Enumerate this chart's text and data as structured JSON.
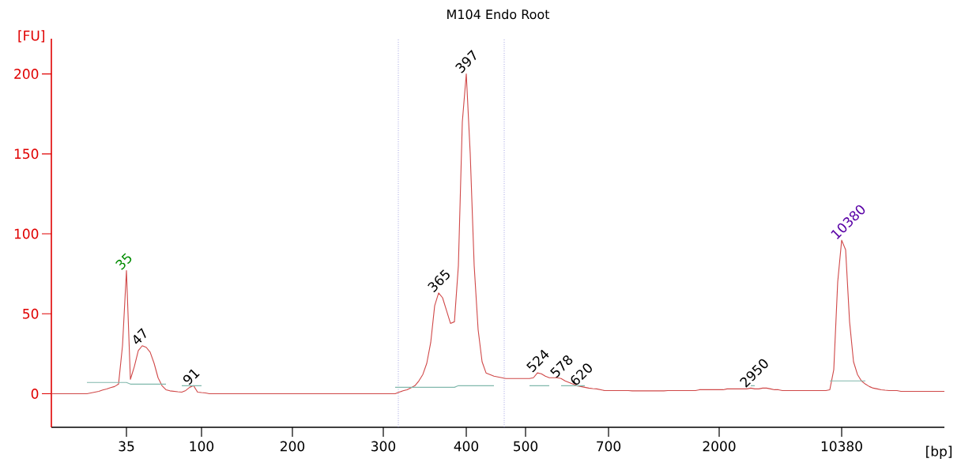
{
  "chart_data": {
    "type": "line",
    "title": "M104 Endo Root",
    "xlabel": "[bp]",
    "ylabel": "[FU]",
    "ylim": [
      -21,
      222
    ],
    "yticks": [
      0,
      50,
      100,
      150,
      200
    ],
    "categories": [
      null,
      null,
      null,
      null,
      null,
      null,
      null,
      null,
      null,
      null,
      null,
      null,
      null,
      null,
      null,
      null,
      null,
      null,
      null,
      "35",
      null,
      null,
      null,
      null,
      null,
      null,
      null,
      null,
      null,
      null,
      null,
      null,
      null,
      null,
      null,
      null,
      null,
      null,
      "100",
      null,
      null,
      null,
      null,
      null,
      null,
      null,
      null,
      null,
      null,
      null,
      null,
      null,
      null,
      null,
      null,
      null,
      null,
      null,
      null,
      null,
      null,
      "200",
      null,
      null,
      null,
      null,
      null,
      null,
      null,
      null,
      null,
      null,
      null,
      null,
      null,
      null,
      null,
      null,
      null,
      null,
      null,
      null,
      null,
      null,
      "300",
      null,
      null,
      null,
      null,
      null,
      null,
      null,
      null,
      null,
      null,
      null,
      null,
      null,
      null,
      null,
      null,
      null,
      null,
      null,
      null,
      "400",
      null,
      null,
      null,
      null,
      null,
      null,
      null,
      null,
      null,
      null,
      null,
      null,
      null,
      null,
      "500",
      null,
      null,
      null,
      null,
      null,
      null,
      null,
      null,
      null,
      null,
      null,
      null,
      null,
      null,
      null,
      null,
      null,
      null,
      null,
      null,
      "700",
      null,
      null,
      null,
      null,
      null,
      null,
      null,
      null,
      null,
      null,
      null,
      null,
      null,
      null,
      null,
      null,
      null,
      null,
      null,
      null,
      null,
      null,
      null,
      null,
      null,
      null,
      null,
      "2000",
      null,
      null,
      null,
      null,
      null,
      null,
      null,
      null,
      null,
      null,
      null,
      null,
      null,
      null,
      null,
      null,
      null,
      null,
      null,
      null,
      null,
      null,
      null,
      null,
      null,
      null,
      null,
      null,
      null,
      null,
      "10380",
      null,
      null,
      null,
      null,
      null,
      null,
      null,
      null,
      null,
      null,
      null,
      null,
      null,
      null,
      null,
      null,
      null,
      null,
      null,
      null,
      null,
      null,
      null,
      null,
      null,
      null
    ],
    "annotations": [
      "35",
      "47",
      "91",
      "365",
      "397",
      "524",
      "578",
      "620",
      "2950",
      "10380"
    ],
    "series": [
      {
        "color": "#d04848",
        "values": [
          0,
          0,
          0,
          0,
          0,
          0,
          0,
          0,
          0,
          0,
          0.5,
          1,
          1.5,
          2.3,
          3,
          3.8,
          4.5,
          6,
          30,
          77,
          9,
          17,
          27,
          30,
          29,
          26,
          19,
          10,
          5,
          2.5,
          1.8,
          1.5,
          1.2,
          1,
          2,
          4,
          5,
          1,
          0.7,
          0.5,
          0,
          0,
          0,
          0,
          0,
          0,
          0,
          0,
          0,
          0,
          0,
          0,
          0,
          0,
          0,
          0,
          0,
          0,
          0,
          0,
          0,
          0,
          0,
          0,
          0,
          0,
          0,
          0,
          0,
          0,
          0,
          0,
          0,
          0,
          0,
          0,
          0,
          0,
          0,
          0,
          0,
          0,
          0,
          0,
          0,
          0,
          0,
          0,
          1,
          1.8,
          2.5,
          3.7,
          5,
          8,
          12,
          19,
          32,
          55,
          63,
          60,
          52,
          44,
          45,
          80,
          170,
          200,
          150,
          80,
          40,
          20,
          13,
          12,
          11,
          10.5,
          10,
          9.5,
          9.5,
          9.5,
          9.5,
          9.5,
          9.5,
          9.5,
          10,
          13,
          12.5,
          11,
          10,
          10,
          10,
          9.5,
          8,
          7,
          6,
          5,
          4.5,
          4,
          3.5,
          3.2,
          3,
          2.5,
          2,
          2,
          2,
          2,
          2,
          2,
          2,
          1.8,
          1.8,
          1.8,
          1.8,
          1.8,
          1.8,
          1.8,
          1.8,
          1.8,
          2,
          2,
          2,
          2,
          2,
          2,
          2,
          2,
          2.5,
          2.5,
          2.5,
          2.5,
          2.5,
          2.5,
          2.5,
          3,
          3,
          3,
          3,
          3,
          3,
          3.5,
          3,
          3,
          3.5,
          3.5,
          3,
          2.5,
          2.5,
          2,
          2,
          2,
          2,
          2,
          2,
          2,
          2,
          2,
          2,
          2,
          2,
          2.5,
          15,
          70,
          96,
          90,
          45,
          20,
          12,
          8,
          6,
          4.5,
          3.5,
          3,
          2.5,
          2.2,
          2,
          2,
          2,
          1.5,
          1.5,
          1.5,
          1.5,
          1.5,
          1.5,
          1.5,
          1.5,
          1.5,
          1.5,
          1.5,
          1.5
        ]
      },
      {
        "color": "#80b8ac",
        "values": [
          null,
          null,
          null,
          null,
          null,
          null,
          null,
          null,
          null,
          7,
          7,
          7,
          7,
          7,
          7,
          7,
          7,
          7,
          7,
          7,
          6,
          6,
          6,
          6,
          6,
          6,
          6,
          6,
          6,
          6,
          null,
          null,
          null,
          5,
          5,
          5,
          5,
          5,
          5,
          null,
          null,
          null,
          null,
          null,
          null,
          null,
          null,
          null,
          null,
          null,
          null,
          null,
          null,
          null,
          null,
          null,
          null,
          null,
          null,
          null,
          null,
          null,
          null,
          null,
          null,
          null,
          null,
          null,
          null,
          null,
          null,
          null,
          null,
          null,
          null,
          null,
          null,
          null,
          null,
          null,
          null,
          null,
          null,
          null,
          null,
          null,
          null,
          4,
          4,
          4,
          4,
          4,
          4,
          4,
          4,
          4,
          4,
          4,
          4,
          4,
          4,
          4,
          4,
          5,
          5,
          5,
          5,
          5,
          5,
          5,
          5,
          5,
          5,
          null,
          null,
          null,
          null,
          null,
          null,
          null,
          null,
          5,
          5,
          5,
          5,
          5,
          5,
          null,
          null,
          5,
          5,
          5,
          5,
          5,
          5,
          5,
          null,
          null,
          null,
          null,
          null,
          null,
          null,
          null,
          null,
          null,
          null,
          null,
          null,
          null,
          null,
          null,
          null,
          null,
          null,
          null,
          null,
          null,
          null,
          null,
          null,
          null,
          null,
          null,
          null,
          null,
          null,
          null,
          null,
          null,
          null,
          null,
          null,
          null,
          null,
          null,
          null,
          5,
          5,
          null,
          null,
          null,
          null,
          null,
          null,
          null,
          null,
          null,
          null,
          null,
          null,
          null,
          null,
          null,
          null,
          null,
          null,
          8,
          8,
          8,
          8,
          8,
          8,
          8,
          8,
          8,
          8,
          null,
          null,
          null,
          null,
          null,
          null,
          null,
          null,
          null,
          null,
          null,
          null,
          null,
          null,
          null,
          null,
          null,
          null,
          null,
          null
        ]
      }
    ]
  }
}
